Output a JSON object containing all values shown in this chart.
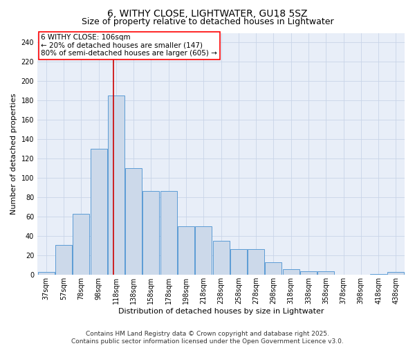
{
  "title_line1": "6, WITHY CLOSE, LIGHTWATER, GU18 5SZ",
  "title_line2": "Size of property relative to detached houses in Lightwater",
  "xlabel": "Distribution of detached houses by size in Lightwater",
  "ylabel": "Number of detached properties",
  "categories": [
    "37sqm",
    "57sqm",
    "78sqm",
    "98sqm",
    "118sqm",
    "138sqm",
    "158sqm",
    "178sqm",
    "198sqm",
    "218sqm",
    "238sqm",
    "258sqm",
    "278sqm",
    "298sqm",
    "318sqm",
    "338sqm",
    "358sqm",
    "378sqm",
    "398sqm",
    "418sqm",
    "438sqm"
  ],
  "values": [
    3,
    31,
    63,
    130,
    185,
    110,
    87,
    87,
    50,
    50,
    35,
    27,
    27,
    13,
    6,
    4,
    4,
    0,
    0,
    1,
    3
  ],
  "bar_color": "#ccd9ea",
  "bar_edge_color": "#5b9bd5",
  "annotation_box_text": "6 WITHY CLOSE: 106sqm\n← 20% of detached houses are smaller (147)\n80% of semi-detached houses are larger (605) →",
  "vline_x": 3.85,
  "vline_color": "#cc0000",
  "ylim": [
    0,
    250
  ],
  "yticks": [
    0,
    20,
    40,
    60,
    80,
    100,
    120,
    140,
    160,
    180,
    200,
    220,
    240
  ],
  "grid_color": "#c8d4e8",
  "bg_color": "#e8eef8",
  "footnote": "Contains HM Land Registry data © Crown copyright and database right 2025.\nContains public sector information licensed under the Open Government Licence v3.0.",
  "title_fontsize": 10,
  "subtitle_fontsize": 9,
  "xlabel_fontsize": 8,
  "ylabel_fontsize": 8,
  "tick_fontsize": 7,
  "annot_fontsize": 7.5,
  "footnote_fontsize": 6.5
}
